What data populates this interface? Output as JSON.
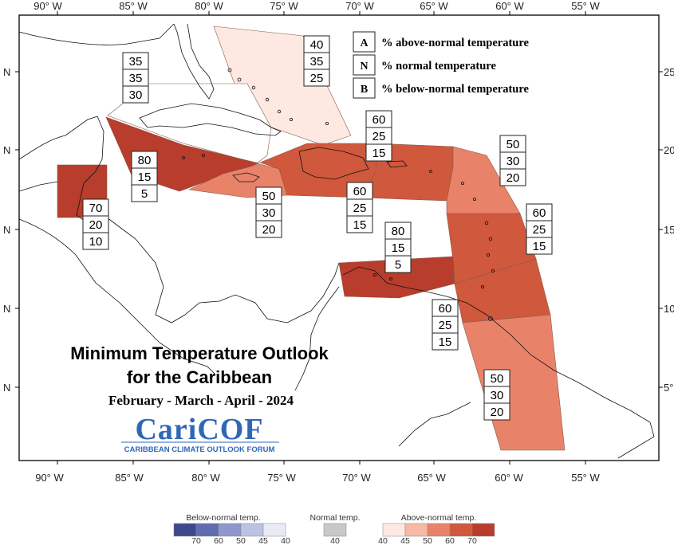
{
  "map": {
    "title_line1": "Minimum Temperature Outlook",
    "title_line2": "for the Caribbean",
    "period": "February - March - April - 2024",
    "brand": "CariCOF",
    "brand_tagline": "CARIBBEAN CLIMATE OUTLOOK FORUM",
    "lon_ticks": [
      "90° W",
      "85° W",
      "80° W",
      "75° W",
      "70° W",
      "65° W",
      "60° W",
      "55° W"
    ],
    "lat_ticks_left": [
      "N",
      "N",
      "N",
      "N",
      "N"
    ],
    "lat_ticks_right": [
      "25",
      "20",
      "15",
      "10",
      "5°"
    ]
  },
  "legend": {
    "items": [
      {
        "key": "A",
        "text": "% above-normal temperature"
      },
      {
        "key": "N",
        "text": "% normal temperature"
      },
      {
        "key": "B",
        "text": "% below-normal temperature"
      }
    ]
  },
  "regions": [
    {
      "name": "bahamas",
      "above": "40",
      "normal": "35",
      "below": "25",
      "color": "#fde9e1"
    },
    {
      "name": "cuba",
      "above": "35",
      "normal": "35",
      "below": "30",
      "color": "#ffffff"
    },
    {
      "name": "hispaniola",
      "above": "60",
      "normal": "25",
      "below": "15",
      "color": "#d0583c"
    },
    {
      "name": "leeward-islands",
      "above": "50",
      "normal": "30",
      "below": "20",
      "color": "#e8836a"
    },
    {
      "name": "cayman",
      "above": "80",
      "normal": "15",
      "below": "5",
      "color": "#b83d2c"
    },
    {
      "name": "jamaica",
      "above": "50",
      "normal": "30",
      "below": "20",
      "color": "#e8836a"
    },
    {
      "name": "puerto-rico",
      "above": "60",
      "normal": "25",
      "below": "15",
      "color": "#d0583c"
    },
    {
      "name": "belize",
      "above": "70",
      "normal": "20",
      "below": "10",
      "color": "#b83d2c"
    },
    {
      "name": "windward-islands",
      "above": "60",
      "normal": "25",
      "below": "15",
      "color": "#d0583c"
    },
    {
      "name": "abc-islands",
      "above": "80",
      "normal": "15",
      "below": "5",
      "color": "#b83d2c"
    },
    {
      "name": "trinidad",
      "above": "60",
      "normal": "25",
      "below": "15",
      "color": "#d0583c"
    },
    {
      "name": "guianas",
      "above": "50",
      "normal": "30",
      "below": "20",
      "color": "#e8836a"
    }
  ],
  "colorbar": {
    "below_title": "Below-normal temp.",
    "normal_title": "Normal temp.",
    "above_title": "Above-normal temp.",
    "below_colors": [
      "#3c4a8c",
      "#5e6db0",
      "#8f98cc",
      "#bcc2e2",
      "#e8ebf6"
    ],
    "below_ticks": [
      "70",
      "60",
      "50",
      "45",
      "40"
    ],
    "normal_color": "#c8c8c8",
    "normal_ticks": [
      "40"
    ],
    "above_colors": [
      "#fde9e1",
      "#f7b8a4",
      "#e8836a",
      "#d0583c",
      "#b83d2c"
    ],
    "above_ticks": [
      "40",
      "45",
      "50",
      "60",
      "70"
    ]
  }
}
